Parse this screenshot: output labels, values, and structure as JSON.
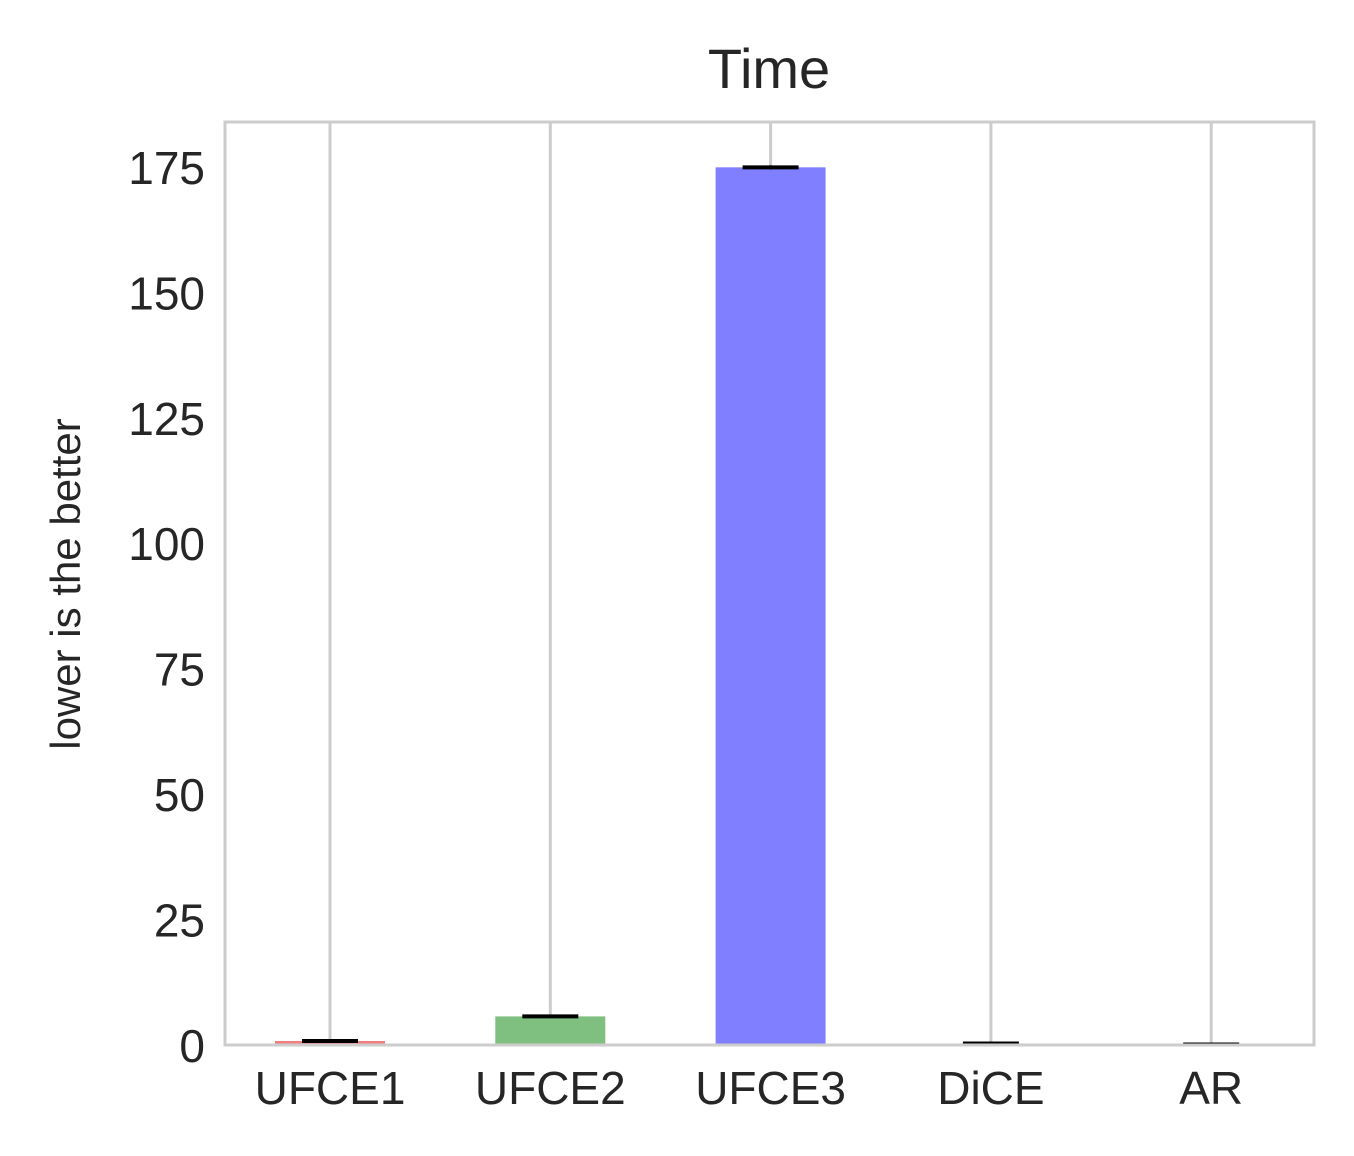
{
  "chart_data": {
    "type": "bar",
    "title": "Time",
    "xlabel": "",
    "ylabel": "lower is the better",
    "categories": [
      "UFCE1",
      "UFCE2",
      "UFCE3",
      "DiCE",
      "AR"
    ],
    "values": [
      0.8,
      5.7,
      174.9,
      0.3,
      0.1
    ],
    "errors": [
      0.2,
      0.3,
      0.4,
      0.1,
      0.05
    ],
    "colors": [
      "#f08080",
      "#7fbf7f",
      "#7f7fff",
      "#cccccc",
      "#cccccc"
    ],
    "ylim": [
      0,
      183
    ],
    "yticks": [
      "0",
      "25",
      "50",
      "75",
      "100",
      "125",
      "150",
      "175"
    ],
    "grid": "x",
    "legend": "none"
  }
}
